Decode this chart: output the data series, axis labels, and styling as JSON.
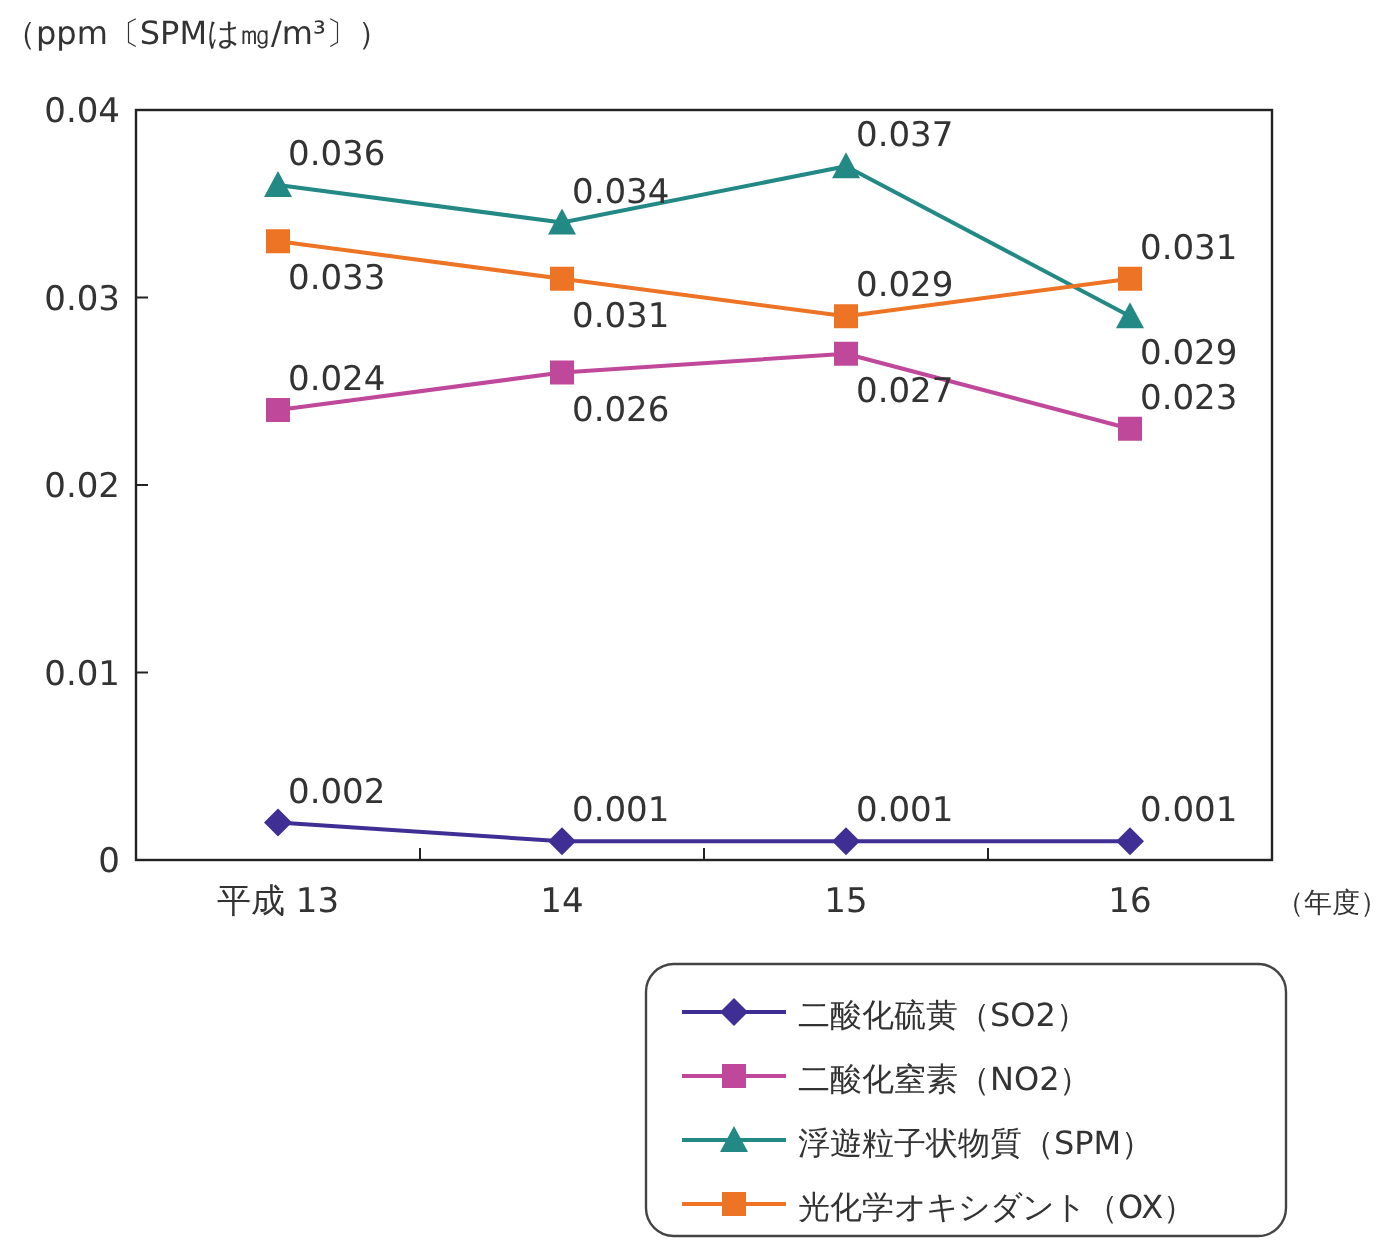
{
  "chart_data": {
    "type": "line",
    "ylabel": "（ppm〔SPMは㎎/m³〕）",
    "xlabel": "（年度）",
    "categories": [
      "平成 13",
      "14",
      "15",
      "16"
    ],
    "ylim": [
      0,
      0.04
    ],
    "yticks": [
      {
        "value": 0,
        "label": "0"
      },
      0.01,
      0.02,
      0.03,
      0.04
    ],
    "grid": false,
    "legend": "bottom right",
    "data_labels": true,
    "series": [
      {
        "name": "二酸化硫黄（SO2）",
        "color": "#3f2f95",
        "marker": "diamond",
        "values": [
          0.002,
          0.001,
          0.001,
          0.001
        ]
      },
      {
        "name": "二酸化窒素（NO2）",
        "color": "#c0489a",
        "marker": "square",
        "values": [
          0.024,
          0.026,
          0.027,
          0.023
        ]
      },
      {
        "name": "浮遊粒子状物質（SPM）",
        "color": "#238985",
        "marker": "triangle",
        "values": [
          0.036,
          0.034,
          0.037,
          0.029
        ]
      },
      {
        "name": "光化学オキシダント（OX）",
        "color": "#ec7424",
        "marker": "square",
        "values": [
          0.033,
          0.031,
          0.029,
          0.031
        ]
      }
    ]
  }
}
